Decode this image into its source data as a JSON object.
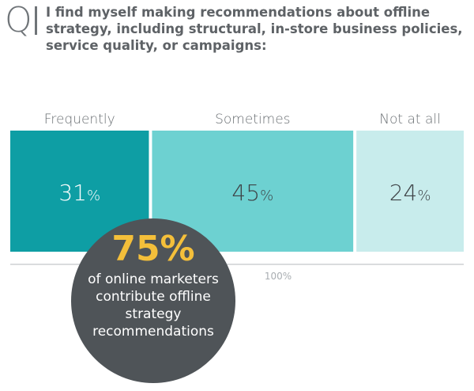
{
  "header": {
    "q_letter": "Q",
    "question": "I find myself making recommendations about offline strategy, including structural, in-store business policies, service quality, or campaigns:"
  },
  "chart_data": {
    "type": "bar",
    "orientation": "horizontal-stacked",
    "categories": [
      "Frequently",
      "Sometimes",
      "Not at all"
    ],
    "values": [
      31,
      45,
      24
    ],
    "value_unit": "%",
    "total_label": "100%",
    "colors": [
      "#0e9ea4",
      "#6dd1d1",
      "#c8ecec"
    ]
  },
  "callout": {
    "big": "75%",
    "text": "of online marketers contribute offline strategy recommendations",
    "colors": {
      "circle": "#4f5458",
      "big": "#f4bf3a"
    }
  }
}
